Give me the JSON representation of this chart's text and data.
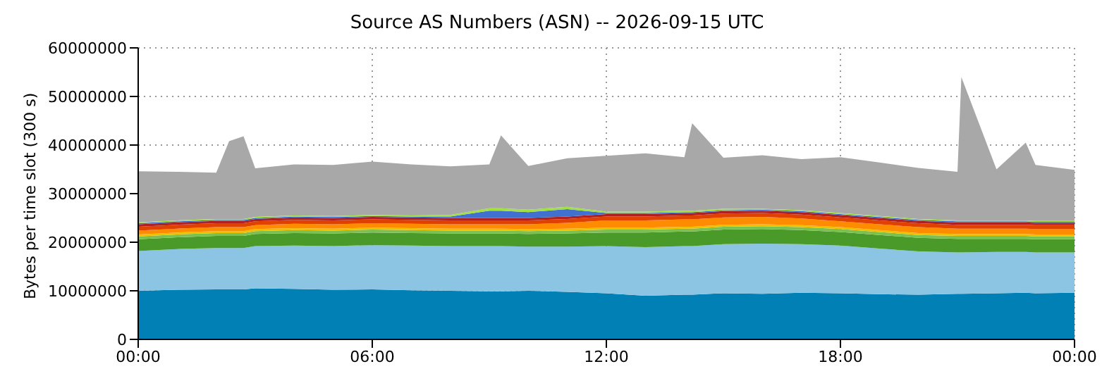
{
  "chart_data": {
    "type": "area",
    "stacked": true,
    "title": "Source AS Numbers (ASN) -- 2026-09-15 UTC",
    "ylabel": "Bytes per time slot (300 s)",
    "grid": true,
    "legend": false,
    "x": [
      0,
      1,
      2,
      2.33,
      2.7,
      3,
      4,
      5,
      6,
      7,
      8,
      9,
      9.3,
      10,
      11,
      12,
      13,
      14,
      14.2,
      15,
      16,
      17,
      18,
      19,
      20,
      21,
      21.1,
      22,
      22.75,
      23,
      24
    ],
    "xlim": [
      0,
      24
    ],
    "xticks": [
      {
        "value": 0,
        "label": "00:00"
      },
      {
        "value": 6,
        "label": "06:00"
      },
      {
        "value": 12,
        "label": "12:00"
      },
      {
        "value": 18,
        "label": "18:00"
      },
      {
        "value": 24,
        "label": "00:00"
      }
    ],
    "ylim": [
      0,
      60000000
    ],
    "yticks": [
      0,
      10000000,
      20000000,
      30000000,
      40000000,
      50000000,
      60000000
    ],
    "series": [
      {
        "color": "#0080b4",
        "values": [
          10000000,
          10200000,
          10300000,
          10300000,
          10300000,
          10500000,
          10400000,
          10200000,
          10300000,
          10100000,
          10000000,
          9900000,
          9900000,
          10000000,
          9800000,
          9500000,
          9000000,
          9200000,
          9200000,
          9500000,
          9400000,
          9600000,
          9500000,
          9300000,
          9200000,
          9400000,
          9400000,
          9500000,
          9600000,
          9500000,
          9600000
        ]
      },
      {
        "color": "#8cc4e4",
        "values": [
          8200000,
          8400000,
          8500000,
          8500000,
          8500000,
          8700000,
          8900000,
          9000000,
          9100000,
          9200000,
          9200000,
          9300000,
          9300000,
          9100000,
          9300000,
          9700000,
          10000000,
          10000000,
          10000000,
          10100000,
          10300000,
          10000000,
          9800000,
          9400000,
          8900000,
          8500000,
          8500000,
          8500000,
          8400000,
          8400000,
          8300000
        ]
      },
      {
        "color": "#4a9a2a",
        "values": [
          2400000,
          2400000,
          2500000,
          2500000,
          2500000,
          2500000,
          2600000,
          2600000,
          2600000,
          2600000,
          2600000,
          2600000,
          2600000,
          2600000,
          2700000,
          2800000,
          3000000,
          3000000,
          3000000,
          3000000,
          3000000,
          2900000,
          2800000,
          2800000,
          2800000,
          2800000,
          2800000,
          2700000,
          2700000,
          2700000,
          2700000
        ]
      },
      {
        "color": "#7cc050",
        "values": [
          600000,
          600000,
          600000,
          600000,
          600000,
          600000,
          600000,
          600000,
          600000,
          600000,
          600000,
          600000,
          600000,
          600000,
          600000,
          600000,
          600000,
          600000,
          600000,
          600000,
          600000,
          600000,
          600000,
          600000,
          600000,
          600000,
          600000,
          600000,
          600000,
          600000,
          600000
        ]
      },
      {
        "color": "#f0c000",
        "values": [
          400000,
          400000,
          400000,
          400000,
          400000,
          400000,
          400000,
          400000,
          400000,
          400000,
          400000,
          400000,
          400000,
          400000,
          400000,
          400000,
          400000,
          400000,
          400000,
          400000,
          400000,
          400000,
          400000,
          400000,
          400000,
          400000,
          400000,
          400000,
          400000,
          400000,
          400000
        ]
      },
      {
        "color": "#ff8c00",
        "values": [
          800000,
          800000,
          800000,
          800000,
          800000,
          800000,
          900000,
          900000,
          900000,
          900000,
          900000,
          900000,
          900000,
          1000000,
          1200000,
          1500000,
          1500000,
          1500000,
          1500000,
          1500000,
          1500000,
          1400000,
          1200000,
          1200000,
          1200000,
          1100000,
          1100000,
          1100000,
          1100000,
          1100000,
          1100000
        ]
      },
      {
        "color": "#e04000",
        "values": [
          800000,
          800000,
          800000,
          800000,
          800000,
          800000,
          800000,
          800000,
          800000,
          800000,
          800000,
          800000,
          800000,
          800000,
          800000,
          800000,
          800000,
          800000,
          800000,
          800000,
          800000,
          800000,
          800000,
          800000,
          800000,
          800000,
          800000,
          800000,
          800000,
          800000,
          800000
        ]
      },
      {
        "color": "#b02020",
        "values": [
          500000,
          500000,
          500000,
          500000,
          500000,
          500000,
          500000,
          500000,
          500000,
          500000,
          500000,
          500000,
          500000,
          500000,
          500000,
          500000,
          500000,
          500000,
          500000,
          500000,
          500000,
          500000,
          500000,
          500000,
          500000,
          500000,
          500000,
          500000,
          500000,
          500000,
          500000
        ]
      },
      {
        "color": "#4070d0",
        "values": [
          200000,
          200000,
          200000,
          200000,
          200000,
          200000,
          200000,
          200000,
          200000,
          200000,
          300000,
          1500000,
          1500000,
          1200000,
          1500000,
          200000,
          200000,
          200000,
          200000,
          200000,
          200000,
          200000,
          200000,
          200000,
          200000,
          200000,
          200000,
          200000,
          200000,
          200000,
          200000
        ]
      },
      {
        "color": "#a0e040",
        "values": [
          200000,
          200000,
          200000,
          200000,
          200000,
          200000,
          200000,
          200000,
          200000,
          200000,
          300000,
          500000,
          500000,
          500000,
          500000,
          300000,
          300000,
          300000,
          300000,
          300000,
          200000,
          200000,
          200000,
          200000,
          200000,
          200000,
          200000,
          200000,
          200000,
          200000,
          200000
        ]
      },
      {
        "color": "#a8a8a8",
        "values": [
          10500000,
          10000000,
          9500000,
          16000000,
          17000000,
          10000000,
          10500000,
          10500000,
          11000000,
          10500000,
          10000000,
          9000000,
          15000000,
          9000000,
          10000000,
          11500000,
          12000000,
          11000000,
          18000000,
          10500000,
          11000000,
          10500000,
          11500000,
          11000000,
          10500000,
          10000000,
          29500000,
          10500000,
          16000000,
          11500000,
          10500000
        ]
      }
    ]
  }
}
